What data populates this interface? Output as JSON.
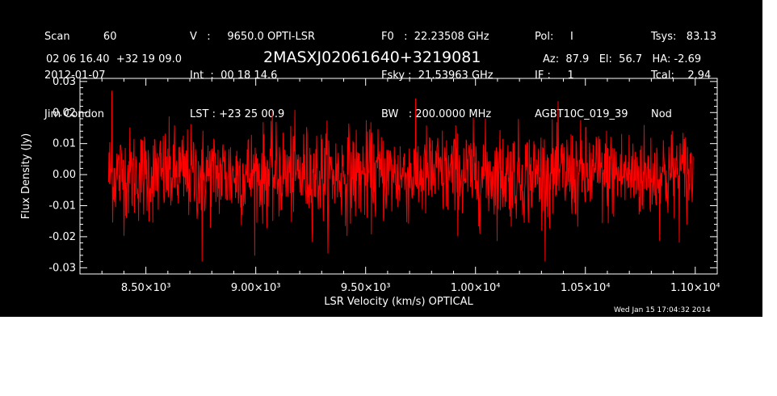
{
  "header": {
    "col1": [
      "Scan          60",
      "2012-01-07",
      "Jim Condon"
    ],
    "col2": [
      "V   :     9650.0 OPTI-LSR",
      "Int  :  00 18 14.6",
      "LST : +23 25 00.9"
    ],
    "col3": [
      "F0   :  22.23508 GHz",
      "Fsky :  21.53963 GHz",
      "BW   : 200.0000 MHz"
    ],
    "col4": [
      "Pol:     I",
      "IF :     1",
      "AGBT10C_019_39"
    ],
    "col5": [
      "Tsys:   83.13",
      "Tcal:    2.94",
      "Nod"
    ],
    "coords": "02 06 16.40  +32 19 09.0",
    "source": "2MASXJ02061640+3219081",
    "azelha": "Az:  87.9   El:  56.7   HA: -2.69",
    "timestamp": "Wed Jan 15 17:04:32 2014"
  },
  "chart_data": {
    "type": "line",
    "xlabel": "LSR Velocity (km/s) OPTICAL",
    "ylabel": "Flux Density (Jy)",
    "xlim": [
      8200,
      11100
    ],
    "ylim": [
      -0.032,
      0.031
    ],
    "x_ticks": [
      8500,
      9000,
      9500,
      10000,
      10500,
      11000
    ],
    "x_tick_labels": [
      "8.50×10³",
      "9.00×10³",
      "9.50×10³",
      "1.00×10⁴",
      "1.05×10⁴",
      "1.10×10⁴"
    ],
    "y_ticks": [
      -0.03,
      -0.02,
      -0.01,
      0.0,
      0.01,
      0.02,
      0.03
    ],
    "y_tick_labels": [
      "-0.03",
      "-0.02",
      "-0.01",
      "0.00",
      "0.01",
      "0.02",
      "0.03"
    ],
    "series": [
      {
        "color": "#ff0000",
        "x_range": [
          8330,
          10990
        ],
        "points": 1400,
        "mean": 0.0,
        "rms": 0.0075,
        "peak_max": 0.027,
        "peak_min": -0.028
      }
    ],
    "colors": {
      "background": "#000000",
      "axes": "#ffffff",
      "line": "#ff0000"
    }
  }
}
